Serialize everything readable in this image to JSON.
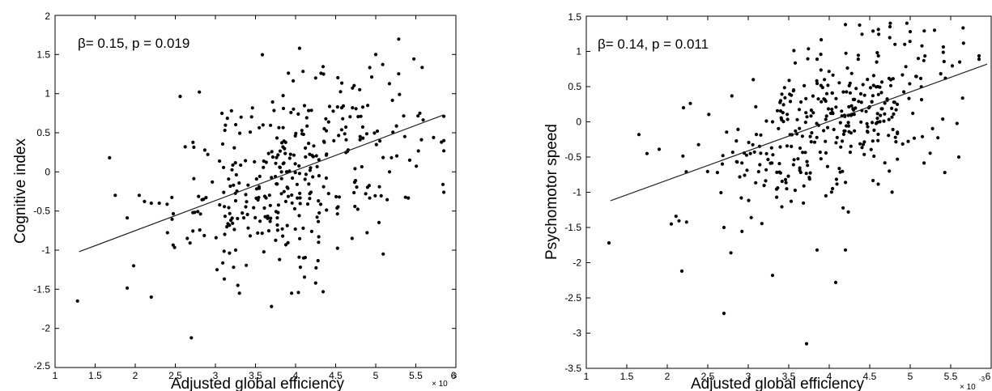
{
  "chart_data": [
    {
      "type": "scatter",
      "xlabel": "Adjusted global efficiency",
      "ylabel": "Cognitive index",
      "annotation": "β= 0.15, p = 0.019",
      "x_exponent_base": "× 10",
      "x_exponent_power": "-3",
      "xlim": [
        1,
        6
      ],
      "ylim": [
        -2.5,
        2
      ],
      "xticks": [
        "1",
        "1.5",
        "2",
        "2.5",
        "3",
        "3.5",
        "4",
        "4.5",
        "5",
        "5.5",
        "6"
      ],
      "yticks": [
        "-2.5",
        "-2",
        "-1.5",
        "-1",
        "-0.5",
        "0",
        "0.5",
        "1",
        "1.5",
        "2"
      ],
      "grid": false,
      "fit_line": {
        "x": [
          1.3,
          5.85
        ],
        "y": [
          -1.02,
          0.73
        ]
      },
      "point_color": "#000000",
      "n_points": 380,
      "points": {
        "x": [
          1.28,
          1.68,
          1.75,
          2.2,
          2.7,
          1.98,
          2.05,
          2.2,
          2.3,
          3.7,
          3.8,
          3.95,
          4.1,
          3.02,
          3.28,
          3.3,
          4.25,
          4.8,
          4.9,
          5.0,
          5.55,
          5.82,
          5.85,
          4.25,
          4.05,
          2.8,
          2.65,
          3.2,
          3.32,
          4.35
        ],
        "y": [
          -1.65,
          0.18,
          -0.3,
          -1.6,
          -2.12,
          -1.2,
          -0.3,
          -0.4,
          -0.4,
          -1.72,
          -1.12,
          -1.55,
          -1.1,
          -1.25,
          -1.45,
          -1.55,
          1.2,
          1.05,
          0.85,
          1.5,
          0.75,
          0.38,
          0.4,
          -1.42,
          1.58,
          1.02,
          -0.85,
          0.78,
          0.7,
          1.25
        ]
      }
    },
    {
      "type": "scatter",
      "xlabel": "Adjusted global efficiency",
      "ylabel": "Psychomotor speed",
      "annotation": "β= 0.14, p = 0.011",
      "x_exponent_base": "× 10",
      "x_exponent_power": "-3",
      "xlim": [
        1,
        6
      ],
      "ylim": [
        -3.5,
        1.5
      ],
      "xticks": [
        "1",
        "1.5",
        "2",
        "2.5",
        "3",
        "3.5",
        "4",
        "4.5",
        "5",
        "5.5",
        "6"
      ],
      "yticks": [
        "-3.5",
        "-3",
        "-2.5",
        "-2",
        "-1.5",
        "-1",
        "-0.5",
        "0",
        "0.5",
        "1",
        "1.5"
      ],
      "grid": false,
      "fit_line": {
        "x": [
          1.3,
          5.95
        ],
        "y": [
          -1.12,
          0.82
        ]
      },
      "point_color": "#000000",
      "n_points": 380,
      "points": {
        "x": [
          1.28,
          2.7,
          3.72,
          2.18,
          2.05,
          3.3,
          4.08,
          3.85,
          4.2,
          5.6,
          5.3,
          5.0,
          4.75,
          4.2,
          5.1,
          4.6,
          1.65,
          1.75,
          2.2,
          2.7,
          3.4,
          3.3
        ],
        "y": [
          -1.72,
          -2.72,
          -3.15,
          -2.12,
          -1.45,
          -2.18,
          -2.28,
          -1.82,
          -1.82,
          -0.5,
          1.3,
          1.28,
          1.35,
          1.38,
          0.9,
          0.5,
          -0.18,
          -0.45,
          0.2,
          -1.5,
          0.3,
          0.0
        ]
      }
    }
  ]
}
